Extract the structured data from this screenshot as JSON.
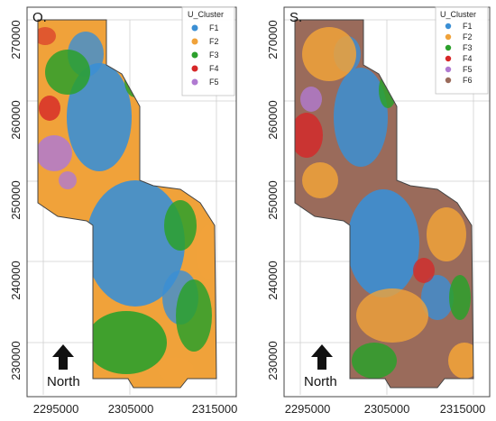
{
  "panels": [
    {
      "label": "O.",
      "legend_title": "U_Cluster",
      "legend": [
        {
          "label": "F1",
          "color": "#3b8fd4"
        },
        {
          "label": "F2",
          "color": "#f0a23a"
        },
        {
          "label": "F3",
          "color": "#2ca02c"
        },
        {
          "label": "F4",
          "color": "#d62728"
        },
        {
          "label": "F5",
          "color": "#b07ad1"
        }
      ],
      "north_label": "North",
      "x_ticks": [
        "2295000",
        "2305000",
        "2315000"
      ],
      "y_ticks": [
        "270000",
        "260000",
        "250000",
        "240000",
        "230000"
      ]
    },
    {
      "label": "S.",
      "legend_title": "U_Cluster",
      "legend": [
        {
          "label": "F1",
          "color": "#3b8fd4"
        },
        {
          "label": "F2",
          "color": "#f0a23a"
        },
        {
          "label": "F3",
          "color": "#2ca02c"
        },
        {
          "label": "F4",
          "color": "#d62728"
        },
        {
          "label": "F5",
          "color": "#b07ad1"
        },
        {
          "label": "F6",
          "color": "#9a6b5b"
        }
      ],
      "north_label": "North",
      "x_ticks": [
        "2295000",
        "2305000",
        "2315000"
      ],
      "y_ticks": [
        "270000",
        "260000",
        "250000",
        "240000",
        "230000"
      ]
    }
  ]
}
